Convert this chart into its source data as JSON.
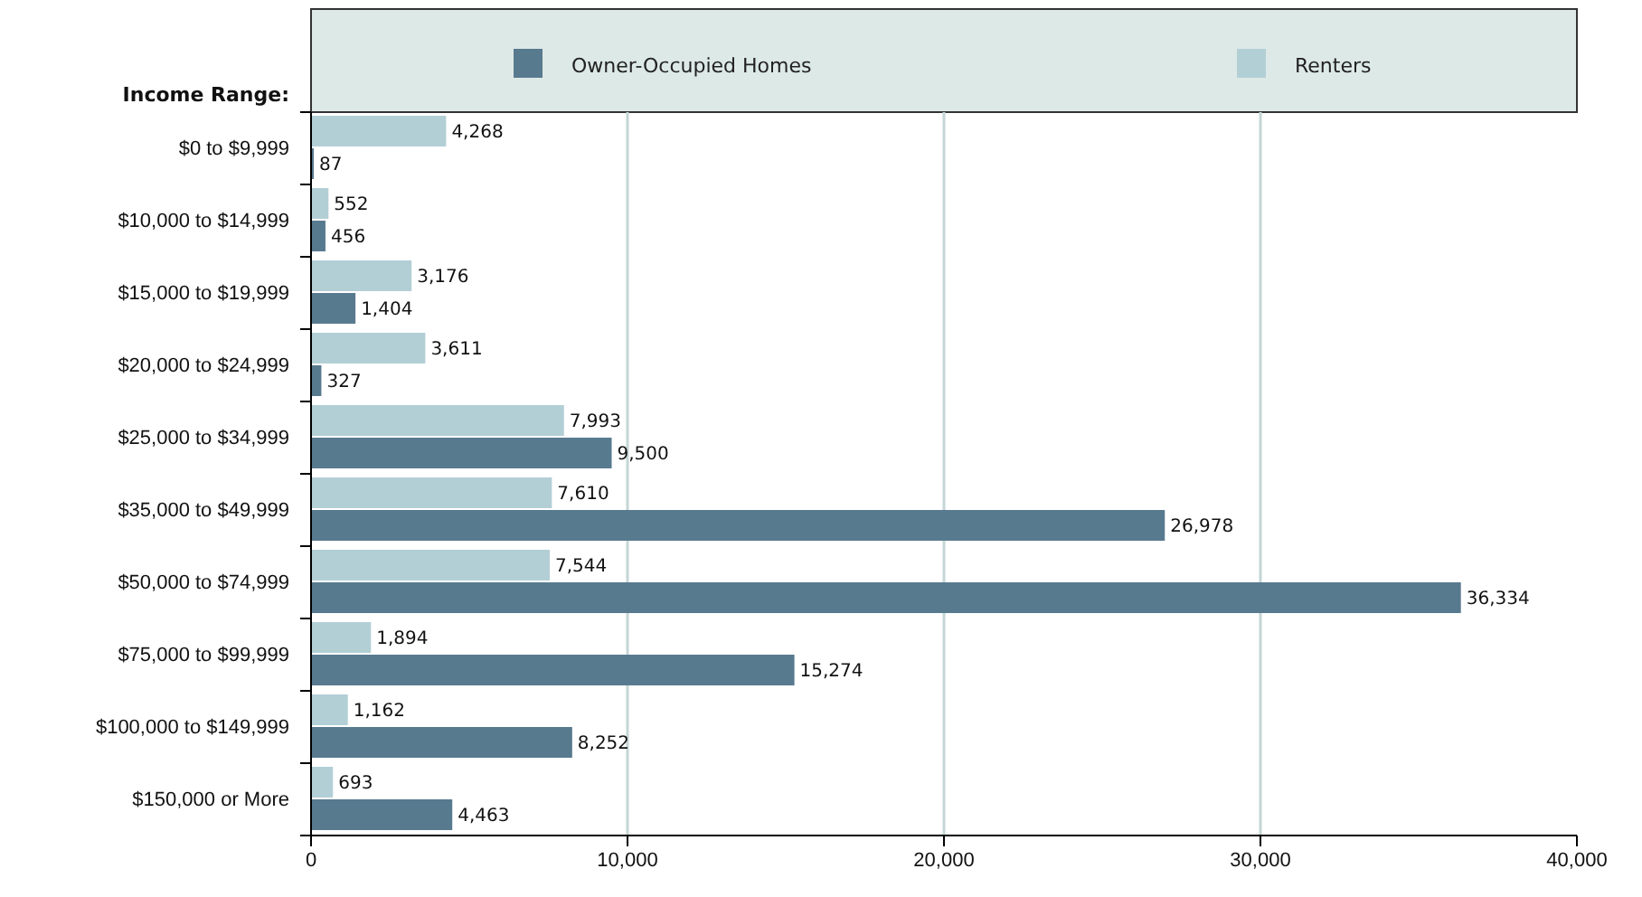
{
  "chart_data": {
    "type": "bar",
    "orientation": "horizontal",
    "ylabel": "Income Range:",
    "categories": [
      "$0 to $9,999",
      "$10,000 to $14,999",
      "$15,000 to $19,999",
      "$20,000 to $24,999",
      "$25,000 to $34,999",
      "$35,000 to $49,999",
      "$50,000 to $74,999",
      "$75,000 to $99,999",
      "$100,000 to $149,999",
      "$150,000 or More"
    ],
    "series": [
      {
        "name": "Owner-Occupied Homes",
        "color": "#587a8f",
        "values": [
          87,
          456,
          1404,
          327,
          9500,
          26978,
          36334,
          15274,
          8252,
          4463
        ],
        "value_labels": [
          "87",
          "456",
          "1,404",
          "327",
          "9,500",
          "26,978",
          "36,334",
          "15,274",
          "8,252",
          "4,463"
        ]
      },
      {
        "name": "Renters",
        "color": "#b3cfd6",
        "values": [
          4268,
          552,
          3176,
          3611,
          7993,
          7610,
          7544,
          1894,
          1162,
          693
        ],
        "value_labels": [
          "4,268",
          "552",
          "3,176",
          "3,611",
          "7,993",
          "7,610",
          "7,544",
          "1,894",
          "1,162",
          "693"
        ]
      }
    ],
    "xlim": [
      0,
      40000
    ],
    "xticks": [
      0,
      {
        "value": 10000,
        "label": "10,000"
      },
      {
        "value": 20000,
        "label": "20,000"
      },
      {
        "value": 30000,
        "label": "30,000"
      },
      {
        "value": 40000,
        "label": "40,000"
      }
    ],
    "grid": "x",
    "legend": "top"
  }
}
